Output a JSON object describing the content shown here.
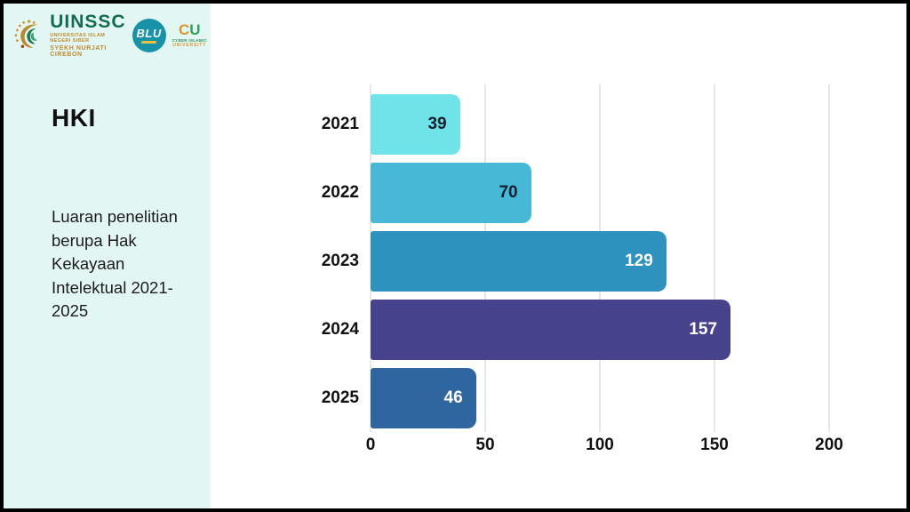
{
  "sidebar": {
    "logos": {
      "uinssc": {
        "acronym": "UINSSC",
        "line1": "UNIVERSITAS ISLAM NEGERI SIBER",
        "line2": "SYEKH NURJATI CIREBON"
      },
      "blu": {
        "label": "BLU"
      },
      "ciu": {
        "monogram_c": "C",
        "monogram_u": "U",
        "line1": "CYBER ISLAMIC",
        "line2": "UNIVERSITY"
      }
    },
    "title": "HKI",
    "description": "Luaran penelitian berupa Hak Kekayaan Intelektual 2021-2025"
  },
  "chart_data": {
    "type": "bar",
    "orientation": "horizontal",
    "title": "HKI",
    "subtitle": "Luaran penelitian berupa Hak Kekayaan Intelektual 2021-2025",
    "categories": [
      "2021",
      "2022",
      "2023",
      "2024",
      "2025"
    ],
    "values": [
      39,
      70,
      129,
      157,
      46
    ],
    "bar_colors": [
      "#6fe3e7",
      "#47b8d6",
      "#2e92be",
      "#46428c",
      "#30669f"
    ],
    "value_label_colors": [
      "#10202e",
      "#10202e",
      "#ffffff",
      "#ffffff",
      "#ffffff"
    ],
    "x_ticks": [
      0,
      50,
      100,
      150,
      200
    ],
    "xlim": [
      0,
      200
    ],
    "xlabel": "",
    "ylabel": "",
    "grid": true,
    "gridline_color": "#e7e7e7",
    "legend": "none"
  },
  "colors": {
    "sidebar_bg": "#e2f6f3",
    "main_bg": "#ffffff",
    "border": "#000000",
    "title_text": "#101010",
    "axis_text": "#111111",
    "uinssc_green": "#156b4e",
    "uinssc_gold": "#c08a2e",
    "blu_teal": "#1792a8"
  }
}
